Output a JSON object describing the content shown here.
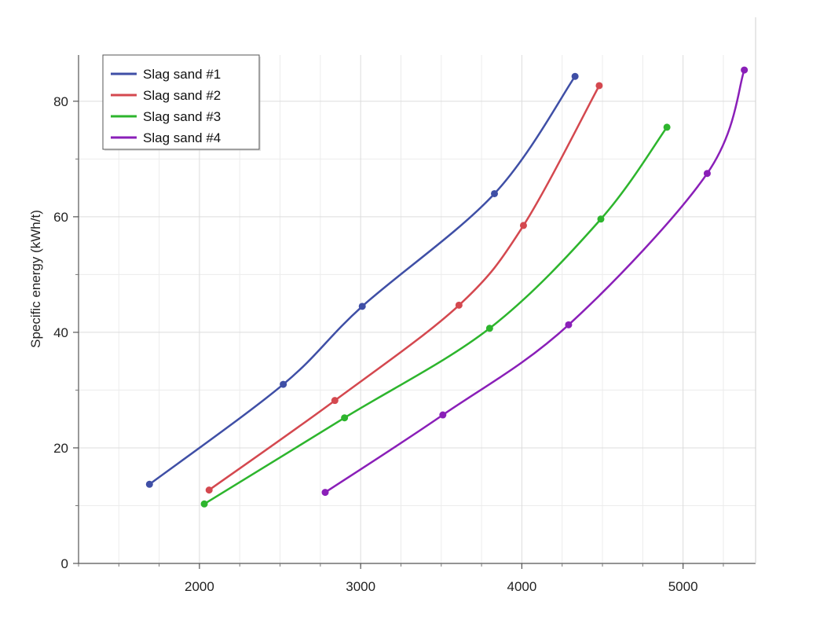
{
  "chart_data": {
    "type": "line",
    "title": "",
    "xlabel": "",
    "ylabel": "Specific energy (kWh/t)",
    "xlim": [
      1250,
      5450
    ],
    "ylim": [
      0,
      88
    ],
    "x_ticks": [
      2000,
      3000,
      4000,
      5000
    ],
    "y_ticks": [
      0,
      20,
      40,
      60,
      80
    ],
    "grid": true,
    "legend_position": "top-left",
    "series": [
      {
        "name": "Slag sand #1",
        "color": "#3f4fa6",
        "points": [
          [
            1690,
            13.7
          ],
          [
            2520,
            31.0
          ],
          [
            3010,
            44.5
          ],
          [
            3830,
            64.0
          ],
          [
            4330,
            84.3
          ]
        ]
      },
      {
        "name": "Slag sand #2",
        "color": "#d4484f",
        "points": [
          [
            2060,
            12.7
          ],
          [
            2840,
            28.2
          ],
          [
            3610,
            44.7
          ],
          [
            4010,
            58.5
          ],
          [
            4480,
            82.7
          ]
        ]
      },
      {
        "name": "Slag sand #3",
        "color": "#2db52d",
        "points": [
          [
            2030,
            10.3
          ],
          [
            2900,
            25.2
          ],
          [
            3800,
            40.7
          ],
          [
            4490,
            59.6
          ],
          [
            4900,
            75.5
          ]
        ]
      },
      {
        "name": "Slag sand #4",
        "color": "#8a1fb8",
        "points": [
          [
            2780,
            12.3
          ],
          [
            3510,
            25.7
          ],
          [
            4290,
            41.3
          ],
          [
            5150,
            67.5
          ],
          [
            5380,
            85.4
          ]
        ]
      }
    ]
  }
}
